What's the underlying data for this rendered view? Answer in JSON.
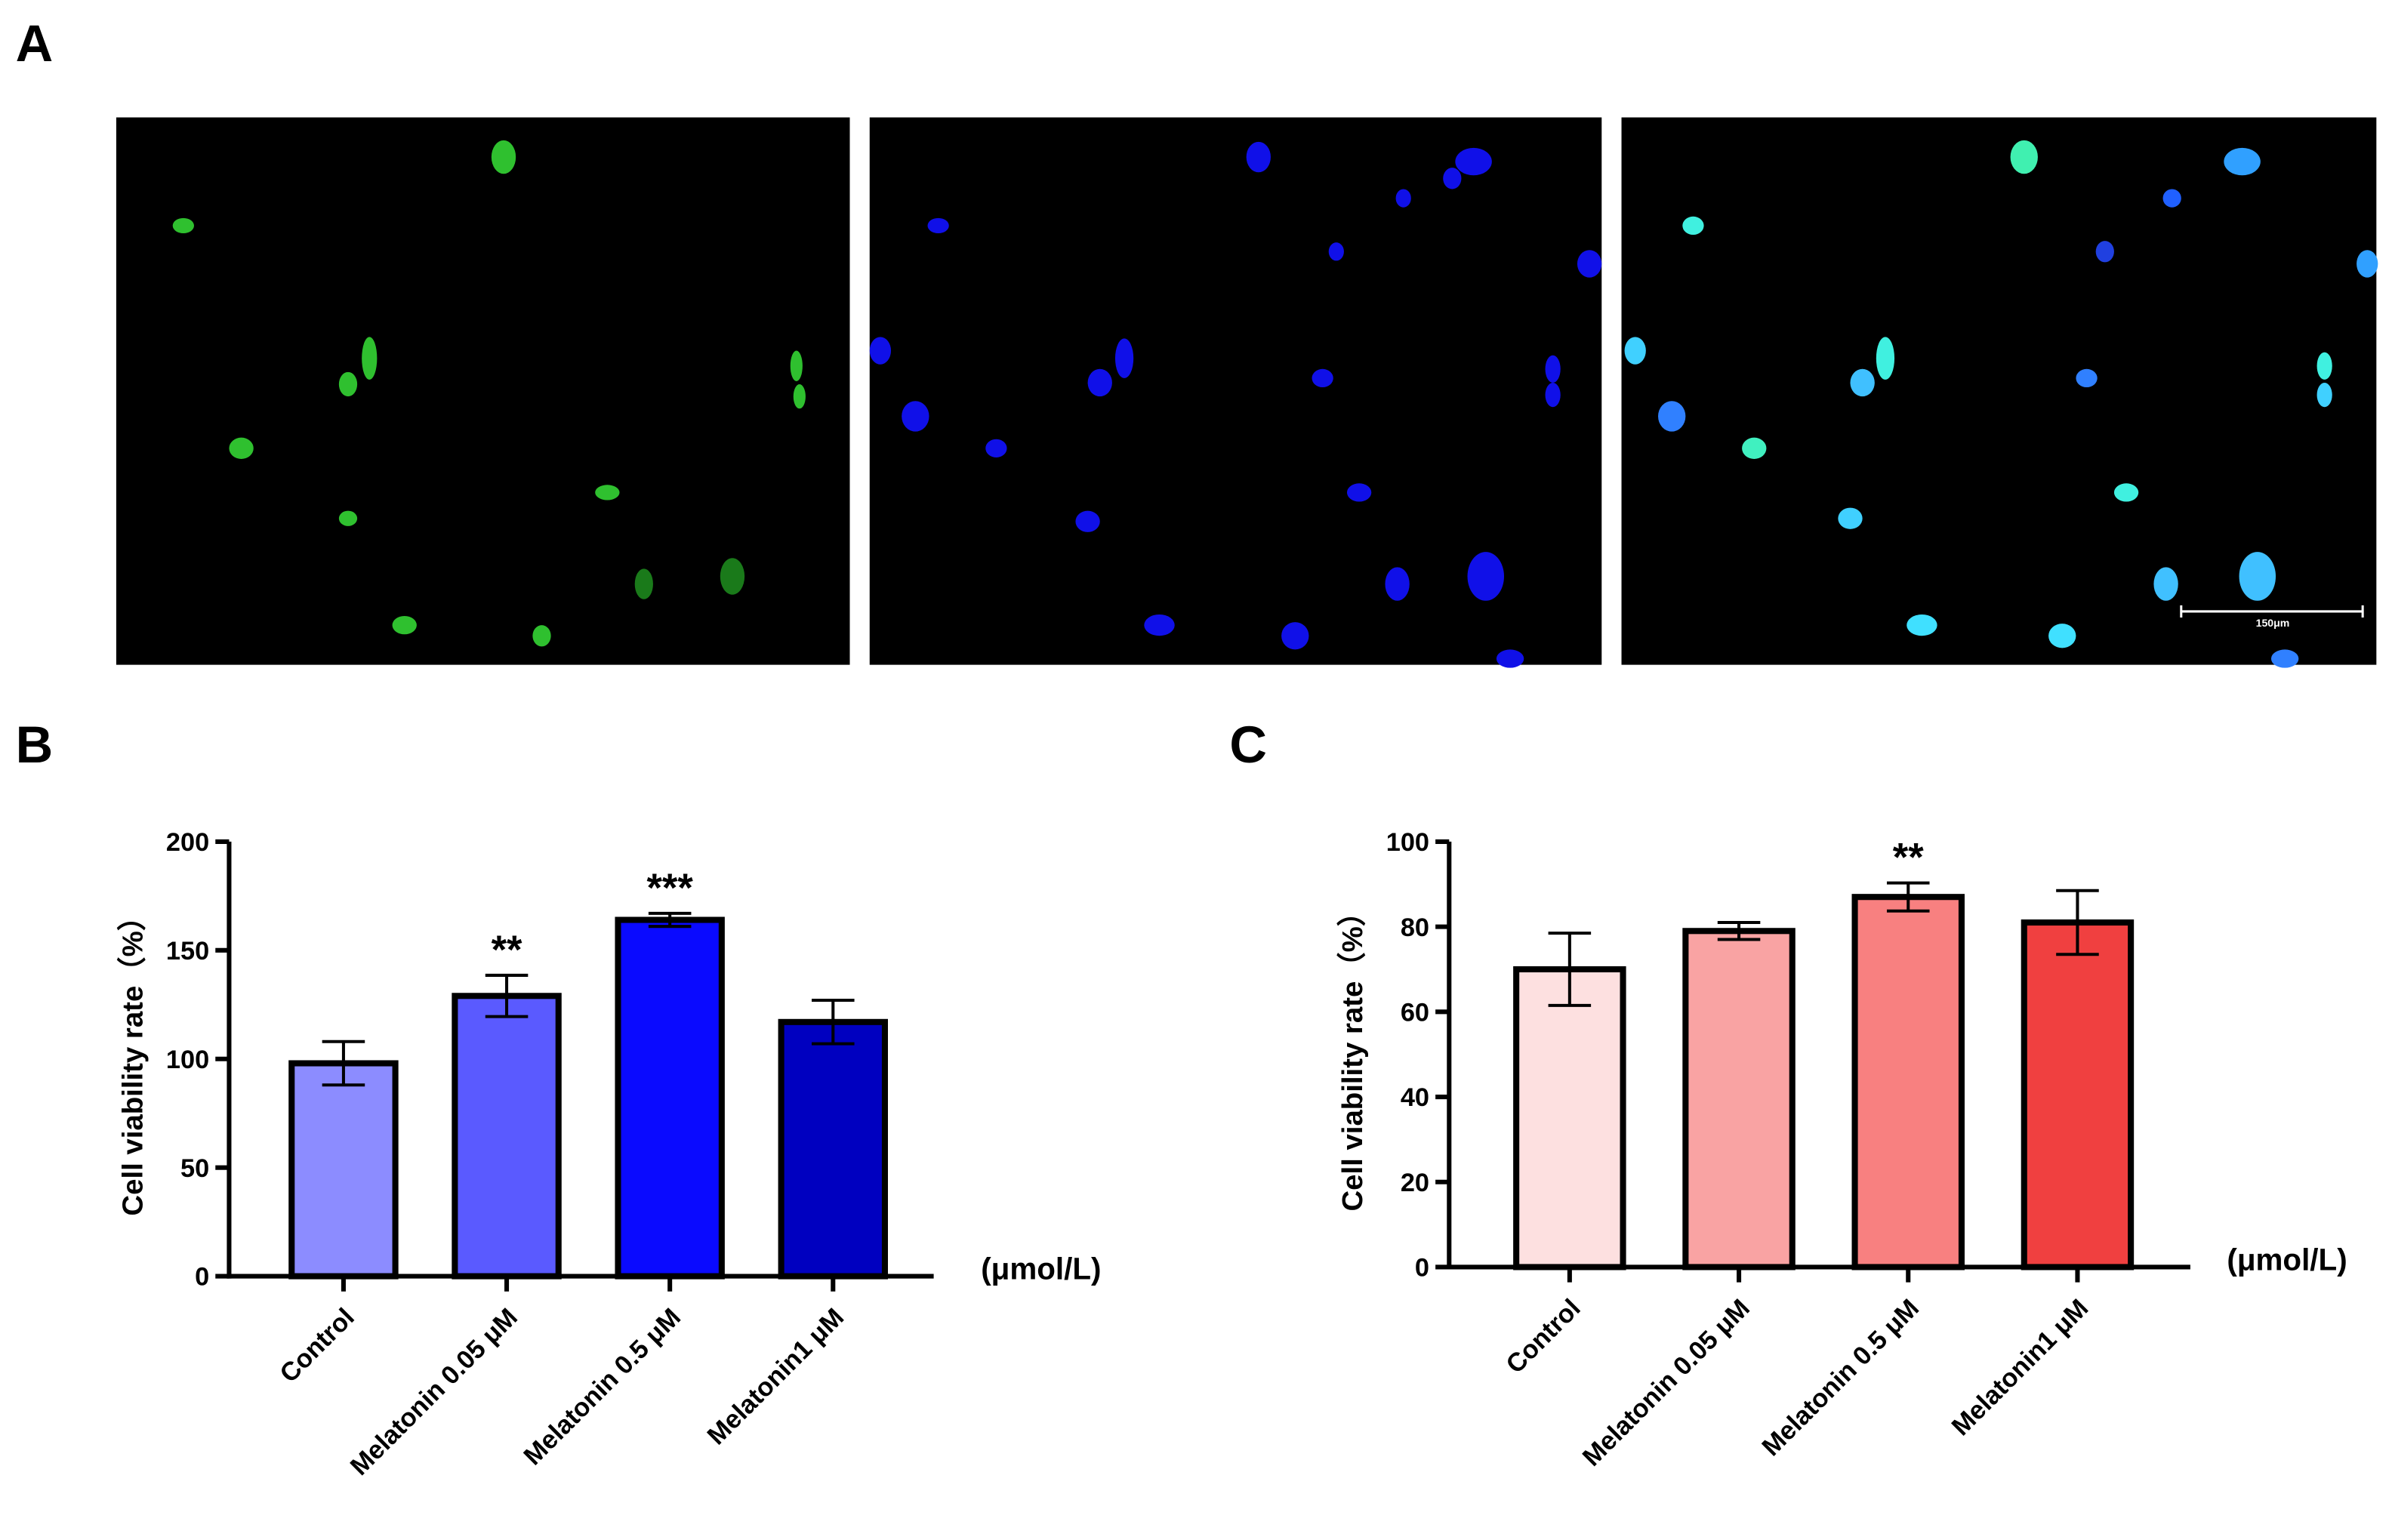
{
  "panel_labels": [
    "A",
    "B",
    "C"
  ],
  "scale_bar": "150μm",
  "chart_data": [
    {
      "type": "bar",
      "y_label": "Cell viability rate（%）",
      "unit_label": "(μmol/L)",
      "categories": [
        "Control",
        "Melatonin 0.05 μM",
        "Melatonin 0.5 μM",
        "Melatonin1 μM"
      ],
      "values": [
        98,
        129,
        164,
        117
      ],
      "errors": [
        10,
        9.5,
        3,
        10
      ],
      "colors": [
        "#8c8cff",
        "#5a5aff",
        "#0a0aff",
        "#0000c0"
      ],
      "significance": [
        null,
        "**",
        "***",
        null
      ],
      "ylim": [
        0,
        200
      ],
      "yticks": [
        0,
        50,
        100,
        150,
        200
      ]
    },
    {
      "type": "bar",
      "y_label": "Cell viability rate（%）",
      "unit_label": "(μmol/L)",
      "categories": [
        "Control",
        "Melatonin 0.05 μM",
        "Melatonin 0.5 μM",
        "Melatonin1 μM"
      ],
      "values": [
        70,
        79,
        87,
        81
      ],
      "errors": [
        8.5,
        2,
        3.3,
        7.5
      ],
      "colors": [
        "#fde0e0",
        "#f9a3a3",
        "#f88080",
        "#f04040"
      ],
      "significance": [
        null,
        null,
        "**",
        null
      ],
      "ylim": [
        0,
        100
      ],
      "yticks": [
        0,
        20,
        40,
        60,
        80,
        100
      ]
    }
  ]
}
